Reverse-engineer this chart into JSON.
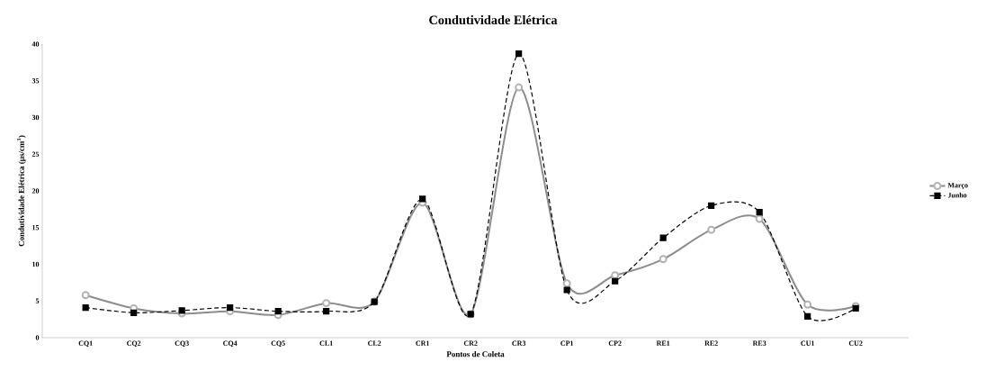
{
  "chart_data": {
    "type": "line",
    "title": "Condutividade Elétrica",
    "xlabel": "Pontos de Coleta",
    "ylabel": "Condutividade Elétrica (µs/cm$^{3}$)",
    "categories": [
      "CQ1",
      "CQ2",
      "CQ3",
      "CQ4",
      "CQ5",
      "CL1",
      "CL2",
      "CR1",
      "CR2",
      "CR3",
      "CP1",
      "CP2",
      "RE1",
      "RE2",
      "RE3",
      "CU1",
      "CU2"
    ],
    "ylim": [
      0,
      40
    ],
    "yticks": [
      0,
      5,
      10,
      15,
      20,
      25,
      30,
      35,
      40
    ],
    "grid": false,
    "legend": "right",
    "series": [
      {
        "name": "Março",
        "color": "#8c8c8c",
        "marker": "circle",
        "line_style": "solid",
        "values": [
          5.8,
          4.0,
          3.3,
          3.6,
          3.1,
          4.7,
          4.9,
          18.4,
          3.2,
          34.1,
          7.4,
          8.5,
          10.7,
          14.7,
          16.2,
          4.5,
          4.3
        ]
      },
      {
        "name": "Junho",
        "color": "#000000",
        "marker": "square",
        "line_style": "dashed",
        "values": [
          4.1,
          3.4,
          3.7,
          4.1,
          3.6,
          3.6,
          4.9,
          18.9,
          3.2,
          38.7,
          6.5,
          7.7,
          13.6,
          18.0,
          17.1,
          2.9,
          4.0
        ]
      }
    ]
  }
}
